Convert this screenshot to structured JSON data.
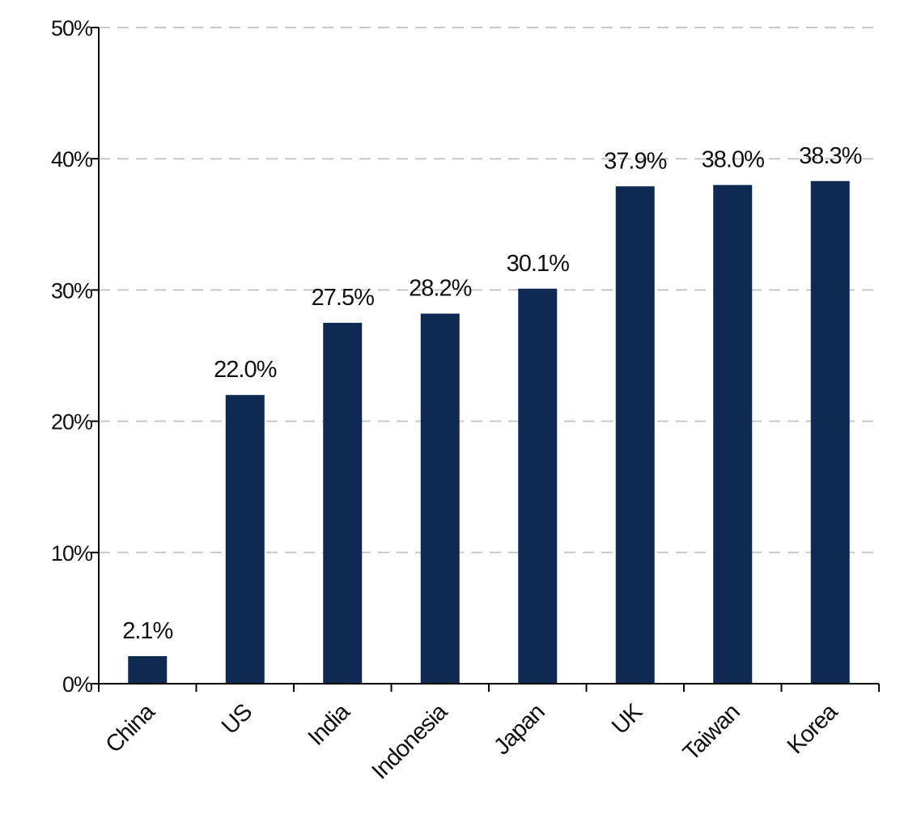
{
  "chart_data": {
    "type": "bar",
    "categories": [
      "China",
      "US",
      "India",
      "Indonesia",
      "Japan",
      "UK",
      "Taiwan",
      "Korea"
    ],
    "values": [
      2.1,
      22.0,
      27.5,
      28.2,
      30.1,
      37.9,
      38.0,
      38.3
    ],
    "data_labels": [
      "2.1%",
      "22.0%",
      "27.5%",
      "28.2%",
      "30.1%",
      "37.9%",
      "38.0%",
      "38.3%"
    ],
    "y_ticks": [
      0,
      10,
      20,
      30,
      40,
      50
    ],
    "y_tick_labels": [
      "0%",
      "10%",
      "20%",
      "30%",
      "40%",
      "50%"
    ],
    "ylim": [
      0,
      50
    ],
    "grid": true,
    "legend": "none",
    "colors": {
      "bar": "#0f2a52",
      "grid": "#c8c8c8",
      "axis": "#000000"
    }
  }
}
